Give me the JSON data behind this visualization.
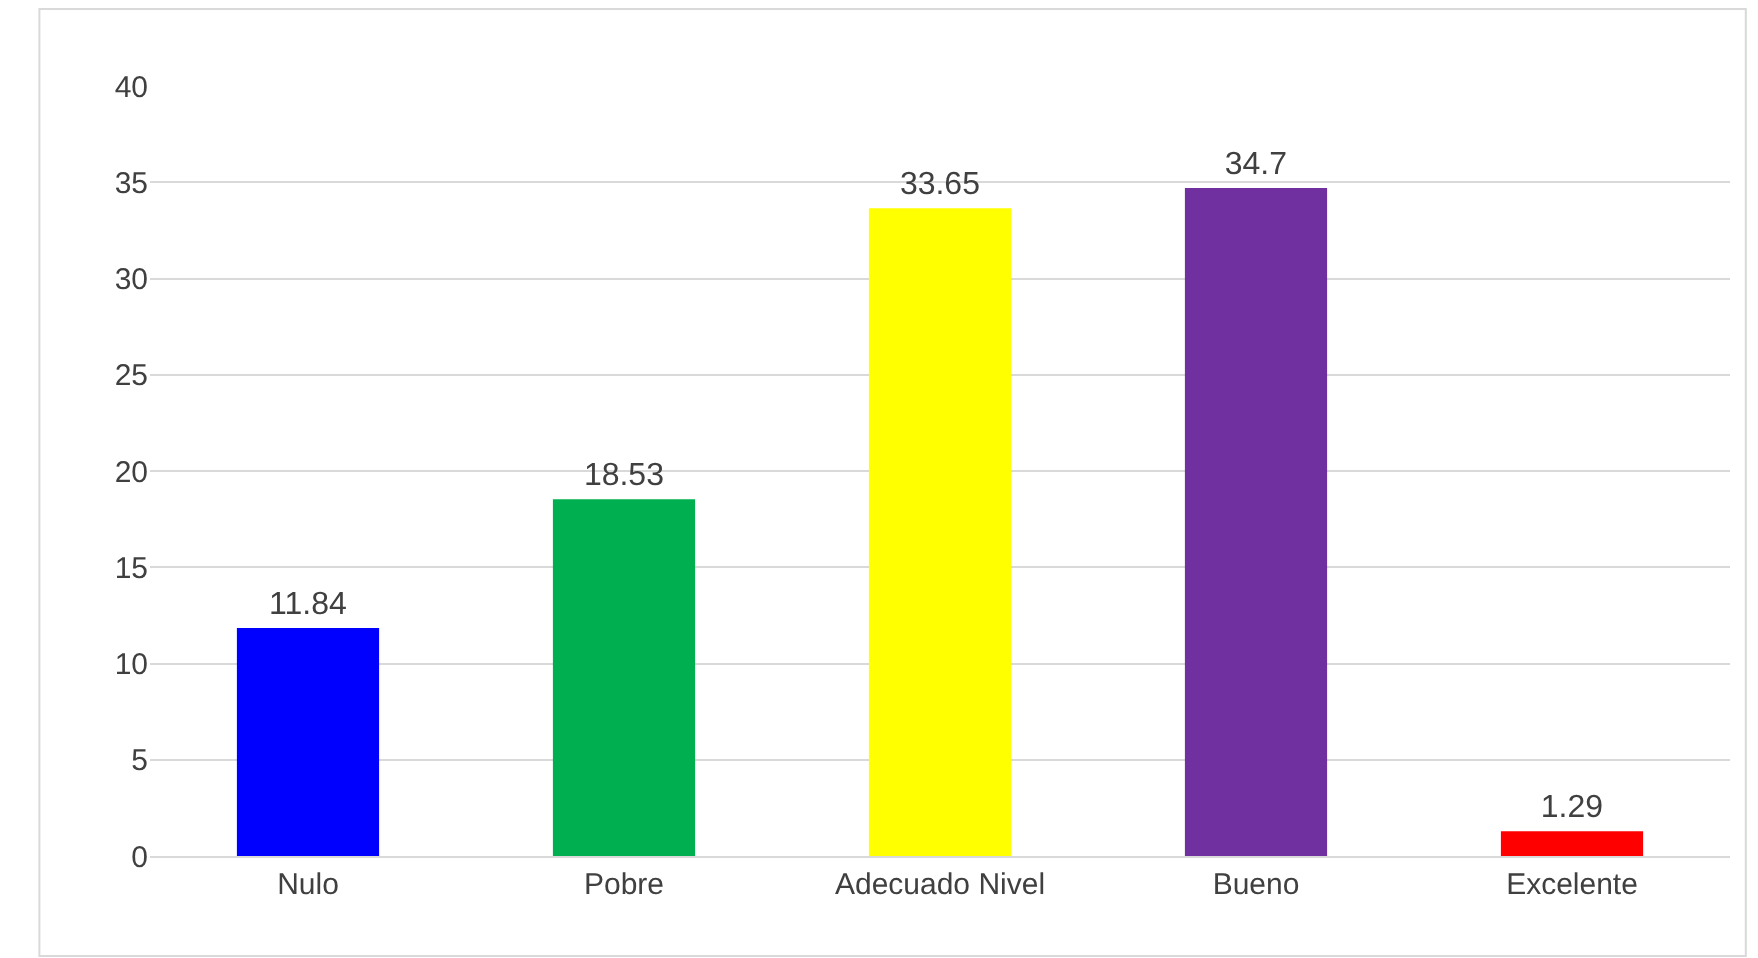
{
  "chart_data": {
    "type": "bar",
    "categories": [
      "Nulo",
      "Pobre",
      "Adecuado Nivel",
      "Bueno",
      "Excelente"
    ],
    "values": [
      11.84,
      18.53,
      33.65,
      34.7,
      1.29
    ],
    "colors": [
      "#0000ff",
      "#00b050",
      "#ffff00",
      "#7030a0",
      "#ff0000"
    ],
    "ylim": [
      0,
      40
    ],
    "yticks": [
      0,
      5,
      10,
      15,
      20,
      25,
      30,
      35,
      40
    ],
    "grid": "y",
    "data_labels": true,
    "legend": false
  }
}
